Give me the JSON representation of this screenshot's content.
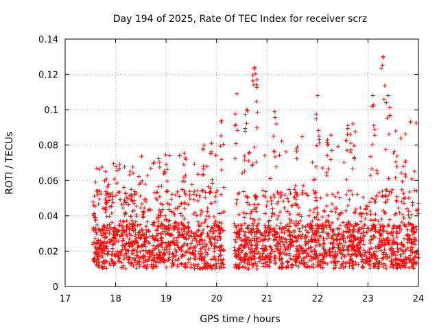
{
  "chart_data": {
    "type": "scatter",
    "title": "Day 194 of 2025, Rate Of TEC Index for receiver scrz",
    "xlabel": "GPS time / hours",
    "ylabel": "ROTI / TECUs",
    "xlim": [
      17,
      24
    ],
    "ylim": [
      0,
      0.14
    ],
    "xticks": [
      17,
      18,
      19,
      20,
      21,
      22,
      23,
      24
    ],
    "yticks": [
      0,
      0.02,
      0.04,
      0.06,
      0.08,
      0.1,
      0.12,
      0.14
    ],
    "ytick_labels": [
      "0",
      "0.02",
      "0.04",
      "0.06",
      "0.08",
      "0.1",
      "0.12",
      "0.14"
    ],
    "grid": true,
    "marker": "+",
    "color": "#ff0000",
    "series": [
      {
        "name": "ROTI",
        "data_start_hour": 17.55,
        "data_end_hour": 24.0,
        "gap_hours": [
          20.15,
          20.35
        ],
        "background_band": [
          0.01,
          0.035
        ],
        "sample_peaks": [
          {
            "x": 17.6,
            "y": 0.059
          },
          {
            "x": 17.8,
            "y": 0.065
          },
          {
            "x": 18.2,
            "y": 0.053
          },
          {
            "x": 19.0,
            "y": 0.069
          },
          {
            "x": 19.35,
            "y": 0.069
          },
          {
            "x": 19.75,
            "y": 0.08
          },
          {
            "x": 19.9,
            "y": 0.081
          },
          {
            "x": 20.1,
            "y": 0.094
          },
          {
            "x": 20.4,
            "y": 0.109
          },
          {
            "x": 20.6,
            "y": 0.1
          },
          {
            "x": 20.75,
            "y": 0.124
          },
          {
            "x": 20.8,
            "y": 0.117
          },
          {
            "x": 21.15,
            "y": 0.099
          },
          {
            "x": 21.6,
            "y": 0.079
          },
          {
            "x": 22.0,
            "y": 0.108
          },
          {
            "x": 22.2,
            "y": 0.083
          },
          {
            "x": 22.6,
            "y": 0.091
          },
          {
            "x": 22.7,
            "y": 0.092
          },
          {
            "x": 23.1,
            "y": 0.108
          },
          {
            "x": 23.3,
            "y": 0.13
          },
          {
            "x": 23.4,
            "y": 0.108
          },
          {
            "x": 23.55,
            "y": 0.088
          },
          {
            "x": 23.7,
            "y": 0.068
          },
          {
            "x": 24.0,
            "y": 0.047
          }
        ]
      }
    ]
  }
}
